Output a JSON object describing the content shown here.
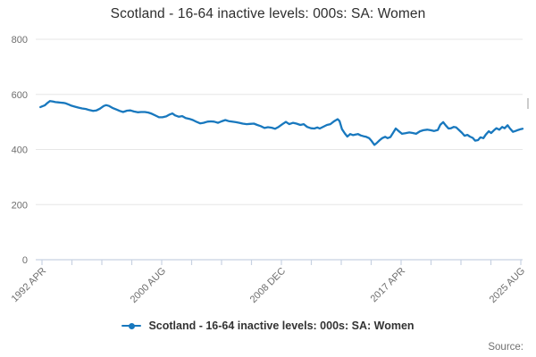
{
  "title": "Scotland - 16-64 inactive levels: 000s: SA: Women",
  "legend": {
    "label": "Scotland - 16-64 inactive levels: 000s: SA: Women",
    "marker": "line-with-dot-icon"
  },
  "source": {
    "text": "Source:"
  },
  "colors": {
    "line": "#1878be",
    "grid": "#e6e6e6",
    "axis": "#c7d2e2",
    "tick_text": "#6e6e6e",
    "title_text": "#2e2e2e",
    "legend_text": "#333333",
    "source_text": "#707070",
    "scroll_dash": "#cccccc",
    "background": "#ffffff"
  },
  "chart_data": {
    "type": "line",
    "title": "Scotland - 16-64 inactive levels: 000s: SA: Women",
    "ylabel": "",
    "xlabel": "",
    "ylim": [
      0,
      800
    ],
    "grid": "horizontal-only",
    "legend_position": "bottom-center",
    "y_axis": {
      "ticks": [
        0,
        200,
        400,
        600,
        800
      ]
    },
    "x_axis": {
      "labels": [
        "1992 APR",
        "2000 AUG",
        "2008 DEC",
        "2017 APR",
        "2025 AUG"
      ],
      "minor_tick_count": 17,
      "labeled_every": 4,
      "label_rotation_deg": -45
    },
    "series": [
      {
        "name": "Scotland - 16-64 inactive levels: 000s: SA: Women",
        "units": "thousands",
        "points": [
          [
            0.004,
            554
          ],
          [
            0.007,
            556
          ],
          [
            0.013,
            560
          ],
          [
            0.018,
            568
          ],
          [
            0.024,
            576
          ],
          [
            0.03,
            574
          ],
          [
            0.035,
            572
          ],
          [
            0.041,
            571
          ],
          [
            0.046,
            570
          ],
          [
            0.052,
            569
          ],
          [
            0.057,
            567
          ],
          [
            0.063,
            563
          ],
          [
            0.068,
            559
          ],
          [
            0.076,
            555
          ],
          [
            0.083,
            552
          ],
          [
            0.09,
            549
          ],
          [
            0.098,
            547
          ],
          [
            0.105,
            543
          ],
          [
            0.113,
            540
          ],
          [
            0.12,
            542
          ],
          [
            0.127,
            548
          ],
          [
            0.135,
            558
          ],
          [
            0.14,
            561
          ],
          [
            0.146,
            558
          ],
          [
            0.153,
            551
          ],
          [
            0.161,
            545
          ],
          [
            0.168,
            540
          ],
          [
            0.175,
            536
          ],
          [
            0.183,
            541
          ],
          [
            0.19,
            542
          ],
          [
            0.197,
            538
          ],
          [
            0.205,
            535
          ],
          [
            0.212,
            536
          ],
          [
            0.22,
            536
          ],
          [
            0.227,
            534
          ],
          [
            0.234,
            530
          ],
          [
            0.242,
            523
          ],
          [
            0.249,
            517
          ],
          [
            0.256,
            517
          ],
          [
            0.264,
            520
          ],
          [
            0.271,
            527
          ],
          [
            0.277,
            531
          ],
          [
            0.282,
            524
          ],
          [
            0.29,
            519
          ],
          [
            0.297,
            521
          ],
          [
            0.304,
            514
          ],
          [
            0.312,
            511
          ],
          [
            0.319,
            507
          ],
          [
            0.327,
            500
          ],
          [
            0.334,
            495
          ],
          [
            0.341,
            497
          ],
          [
            0.349,
            501
          ],
          [
            0.356,
            502
          ],
          [
            0.363,
            501
          ],
          [
            0.371,
            497
          ],
          [
            0.378,
            502
          ],
          [
            0.386,
            507
          ],
          [
            0.393,
            503
          ],
          [
            0.4,
            501
          ],
          [
            0.408,
            499
          ],
          [
            0.415,
            497
          ],
          [
            0.422,
            494
          ],
          [
            0.43,
            492
          ],
          [
            0.437,
            493
          ],
          [
            0.445,
            494
          ],
          [
            0.452,
            489
          ],
          [
            0.459,
            485
          ],
          [
            0.467,
            478
          ],
          [
            0.474,
            481
          ],
          [
            0.482,
            479
          ],
          [
            0.489,
            475
          ],
          [
            0.496,
            482
          ],
          [
            0.504,
            492
          ],
          [
            0.511,
            500
          ],
          [
            0.518,
            492
          ],
          [
            0.526,
            497
          ],
          [
            0.533,
            494
          ],
          [
            0.541,
            489
          ],
          [
            0.548,
            492
          ],
          [
            0.555,
            482
          ],
          [
            0.563,
            477
          ],
          [
            0.57,
            476
          ],
          [
            0.576,
            480
          ],
          [
            0.581,
            476
          ],
          [
            0.589,
            483
          ],
          [
            0.596,
            489
          ],
          [
            0.603,
            492
          ],
          [
            0.611,
            503
          ],
          [
            0.618,
            510
          ],
          [
            0.622,
            503
          ],
          [
            0.627,
            474
          ],
          [
            0.633,
            458
          ],
          [
            0.638,
            447
          ],
          [
            0.644,
            456
          ],
          [
            0.65,
            452
          ],
          [
            0.655,
            454
          ],
          [
            0.66,
            456
          ],
          [
            0.666,
            451
          ],
          [
            0.672,
            448
          ],
          [
            0.677,
            446
          ],
          [
            0.683,
            441
          ],
          [
            0.688,
            431
          ],
          [
            0.694,
            417
          ],
          [
            0.699,
            424
          ],
          [
            0.705,
            434
          ],
          [
            0.71,
            441
          ],
          [
            0.716,
            446
          ],
          [
            0.721,
            441
          ],
          [
            0.727,
            445
          ],
          [
            0.733,
            462
          ],
          [
            0.738,
            476
          ],
          [
            0.744,
            467
          ],
          [
            0.751,
            457
          ],
          [
            0.758,
            459
          ],
          [
            0.766,
            462
          ],
          [
            0.773,
            460
          ],
          [
            0.78,
            457
          ],
          [
            0.788,
            466
          ],
          [
            0.795,
            470
          ],
          [
            0.803,
            472
          ],
          [
            0.81,
            470
          ],
          [
            0.817,
            467
          ],
          [
            0.825,
            471
          ],
          [
            0.83,
            490
          ],
          [
            0.836,
            499
          ],
          [
            0.841,
            488
          ],
          [
            0.847,
            476
          ],
          [
            0.852,
            477
          ],
          [
            0.858,
            482
          ],
          [
            0.863,
            480
          ],
          [
            0.869,
            470
          ],
          [
            0.875,
            460
          ],
          [
            0.88,
            450
          ],
          [
            0.886,
            453
          ],
          [
            0.891,
            447
          ],
          [
            0.897,
            442
          ],
          [
            0.902,
            432
          ],
          [
            0.908,
            434
          ],
          [
            0.913,
            444
          ],
          [
            0.919,
            441
          ],
          [
            0.924,
            454
          ],
          [
            0.93,
            466
          ],
          [
            0.935,
            460
          ],
          [
            0.941,
            470
          ],
          [
            0.946,
            477
          ],
          [
            0.952,
            472
          ],
          [
            0.958,
            482
          ],
          [
            0.963,
            477
          ],
          [
            0.969,
            488
          ],
          [
            0.974,
            476
          ],
          [
            0.98,
            464
          ],
          [
            0.985,
            467
          ],
          [
            0.991,
            471
          ],
          [
            0.996,
            474
          ],
          [
            1.0,
            475
          ]
        ]
      }
    ]
  }
}
